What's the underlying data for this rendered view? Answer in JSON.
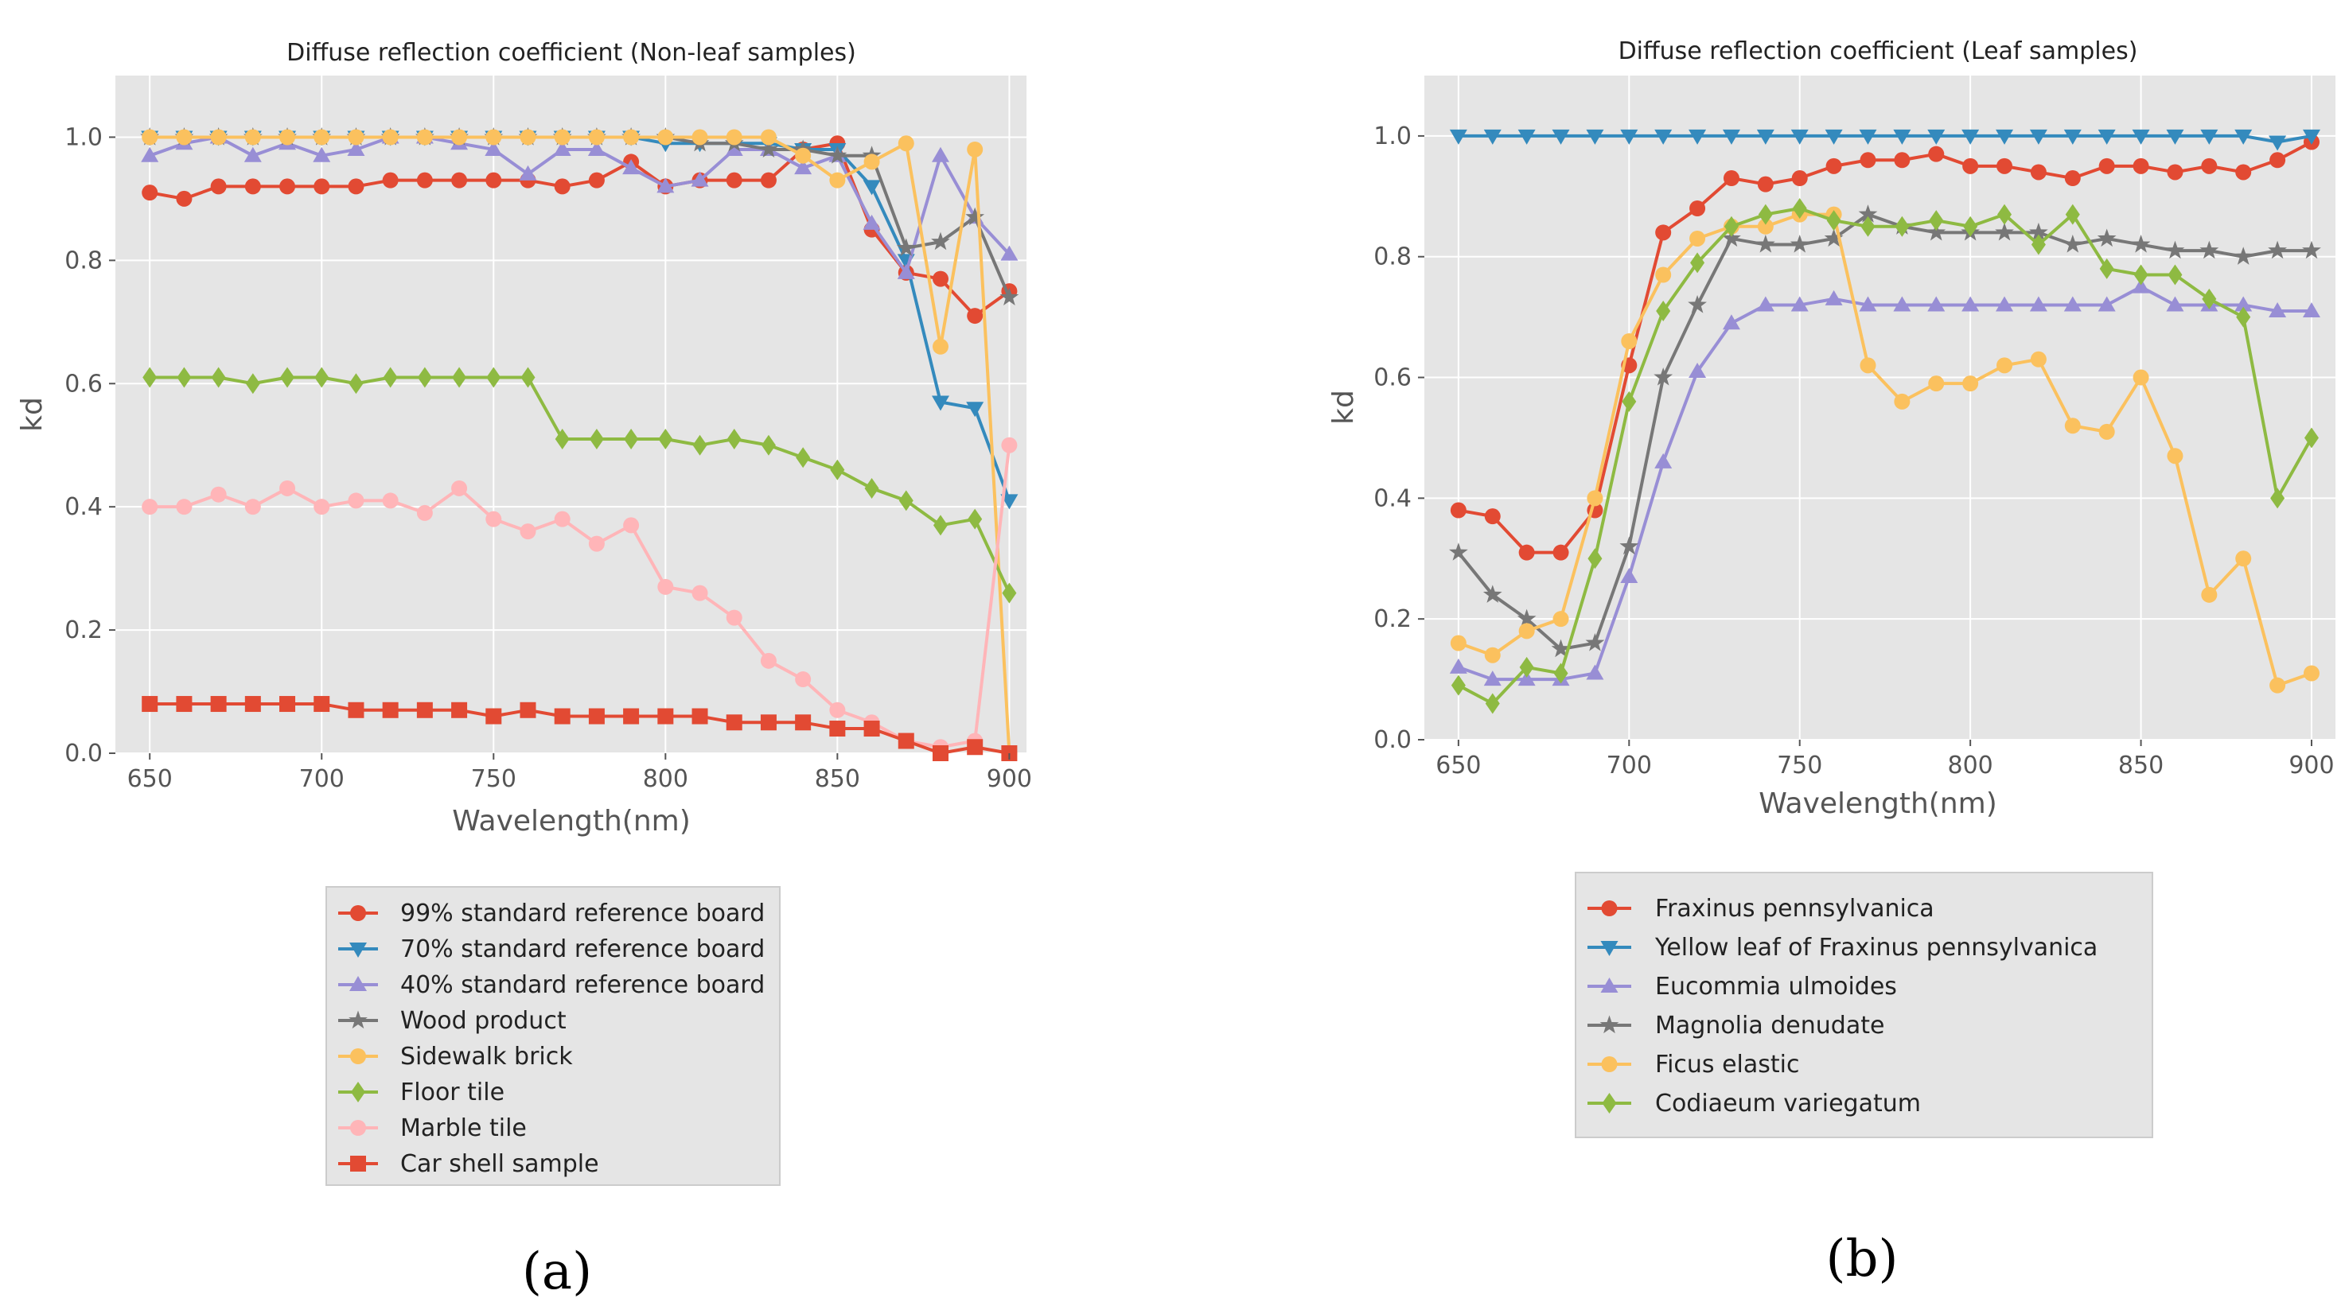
{
  "chart_data": [
    {
      "id": "a",
      "type": "line",
      "panel_label": "(a)",
      "title": "Diffuse reflection coefficient (Non-leaf samples)",
      "xlabel": "Wavelength(nm)",
      "ylabel": "kd",
      "xlim": [
        640,
        905
      ],
      "ylim": [
        0,
        1.1
      ],
      "xticks": [
        650,
        700,
        750,
        800,
        850,
        900
      ],
      "yticks": [
        0.0,
        0.2,
        0.4,
        0.6,
        0.8,
        1.0
      ],
      "xtick_labels": [
        "650",
        "700",
        "750",
        "800",
        "850",
        "900"
      ],
      "ytick_labels": [
        "0.0",
        "0.2",
        "0.4",
        "0.6",
        "0.8",
        "1.0"
      ],
      "grid": true,
      "legend_position": "below",
      "x": [
        650,
        660,
        670,
        680,
        690,
        700,
        710,
        720,
        730,
        740,
        750,
        760,
        770,
        780,
        790,
        800,
        810,
        820,
        830,
        840,
        850,
        860,
        870,
        880,
        890,
        900
      ],
      "series": [
        {
          "name": "99% standard reference board",
          "color": "#E24A33",
          "marker": "circle",
          "values": [
            0.91,
            0.9,
            0.92,
            0.92,
            0.92,
            0.92,
            0.92,
            0.93,
            0.93,
            0.93,
            0.93,
            0.93,
            0.92,
            0.93,
            0.96,
            0.92,
            0.93,
            0.93,
            0.93,
            0.98,
            0.99,
            0.85,
            0.78,
            0.77,
            0.71,
            0.75
          ]
        },
        {
          "name": "70% standard reference board",
          "color": "#348ABD",
          "marker": "triangle-down",
          "values": [
            1.0,
            1.0,
            1.0,
            1.0,
            1.0,
            1.0,
            1.0,
            1.0,
            1.0,
            1.0,
            1.0,
            1.0,
            1.0,
            1.0,
            1.0,
            0.99,
            0.99,
            0.99,
            0.99,
            0.98,
            0.98,
            0.92,
            0.8,
            0.57,
            0.56,
            0.41
          ]
        },
        {
          "name": "40% standard reference board",
          "color": "#988ED5",
          "marker": "triangle-up",
          "values": [
            0.97,
            0.99,
            1.0,
            0.97,
            0.99,
            0.97,
            0.98,
            1.0,
            1.0,
            0.99,
            0.98,
            0.94,
            0.98,
            0.98,
            0.95,
            0.92,
            0.93,
            0.98,
            0.98,
            0.95,
            0.97,
            0.86,
            0.78,
            0.97,
            0.87,
            0.81
          ]
        },
        {
          "name": "Wood product",
          "color": "#777777",
          "marker": "star",
          "values": [
            1.0,
            1.0,
            1.0,
            1.0,
            1.0,
            1.0,
            1.0,
            1.0,
            1.0,
            1.0,
            1.0,
            1.0,
            1.0,
            1.0,
            1.0,
            1.0,
            0.99,
            0.99,
            0.98,
            0.98,
            0.97,
            0.97,
            0.82,
            0.83,
            0.87,
            0.74
          ]
        },
        {
          "name": "Sidewalk brick",
          "color": "#FBC15E",
          "marker": "circle",
          "values": [
            1.0,
            1.0,
            1.0,
            1.0,
            1.0,
            1.0,
            1.0,
            1.0,
            1.0,
            1.0,
            1.0,
            1.0,
            1.0,
            1.0,
            1.0,
            1.0,
            1.0,
            1.0,
            1.0,
            0.97,
            0.93,
            0.96,
            0.99,
            0.66,
            0.98,
            0.0
          ]
        },
        {
          "name": "Floor tile",
          "color": "#8EBA42",
          "marker": "diamond",
          "values": [
            0.61,
            0.61,
            0.61,
            0.6,
            0.61,
            0.61,
            0.6,
            0.61,
            0.61,
            0.61,
            0.61,
            0.61,
            0.51,
            0.51,
            0.51,
            0.51,
            0.5,
            0.51,
            0.5,
            0.48,
            0.46,
            0.43,
            0.41,
            0.37,
            0.38,
            0.26
          ]
        },
        {
          "name": "Marble tile",
          "color": "#FFB5B8",
          "marker": "circle",
          "values": [
            0.4,
            0.4,
            0.42,
            0.4,
            0.43,
            0.4,
            0.41,
            0.41,
            0.39,
            0.43,
            0.38,
            0.36,
            0.38,
            0.34,
            0.37,
            0.27,
            0.26,
            0.22,
            0.15,
            0.12,
            0.07,
            0.05,
            0.02,
            0.01,
            0.02,
            0.5
          ]
        },
        {
          "name": "Car shell sample",
          "color": "#E24A33",
          "marker": "square",
          "values": [
            0.08,
            0.08,
            0.08,
            0.08,
            0.08,
            0.08,
            0.07,
            0.07,
            0.07,
            0.07,
            0.06,
            0.07,
            0.06,
            0.06,
            0.06,
            0.06,
            0.06,
            0.05,
            0.05,
            0.05,
            0.04,
            0.04,
            0.02,
            0.0,
            0.01,
            0.0
          ]
        }
      ]
    },
    {
      "id": "b",
      "type": "line",
      "panel_label": "(b)",
      "title": "Diffuse reflection coefficient (Leaf samples)",
      "xlabel": "Wavelength(nm)",
      "ylabel": "kd",
      "xlim": [
        640,
        907
      ],
      "ylim": [
        0,
        1.1
      ],
      "xticks": [
        650,
        700,
        750,
        800,
        850,
        900
      ],
      "yticks": [
        0.0,
        0.2,
        0.4,
        0.6,
        0.8,
        1.0
      ],
      "xtick_labels": [
        "650",
        "700",
        "750",
        "800",
        "850",
        "900"
      ],
      "ytick_labels": [
        "0.0",
        "0.2",
        "0.4",
        "0.6",
        "0.8",
        "1.0"
      ],
      "grid": true,
      "legend_position": "below",
      "x": [
        650,
        660,
        670,
        680,
        690,
        700,
        710,
        720,
        730,
        740,
        750,
        760,
        770,
        780,
        790,
        800,
        810,
        820,
        830,
        840,
        850,
        860,
        870,
        880,
        890,
        900
      ],
      "series": [
        {
          "name": "Fraxinus pennsylvanica",
          "color": "#E24A33",
          "marker": "circle",
          "values": [
            0.38,
            0.37,
            0.31,
            0.31,
            0.38,
            0.62,
            0.84,
            0.88,
            0.93,
            0.92,
            0.93,
            0.95,
            0.96,
            0.96,
            0.97,
            0.95,
            0.95,
            0.94,
            0.93,
            0.95,
            0.95,
            0.94,
            0.95,
            0.94,
            0.96,
            0.99
          ]
        },
        {
          "name": "Yellow leaf of Fraxinus pennsylvanica",
          "color": "#348ABD",
          "marker": "triangle-down",
          "values": [
            1.0,
            1.0,
            1.0,
            1.0,
            1.0,
            1.0,
            1.0,
            1.0,
            1.0,
            1.0,
            1.0,
            1.0,
            1.0,
            1.0,
            1.0,
            1.0,
            1.0,
            1.0,
            1.0,
            1.0,
            1.0,
            1.0,
            1.0,
            1.0,
            0.99,
            1.0
          ]
        },
        {
          "name": "Eucommia ulmoides",
          "color": "#988ED5",
          "marker": "triangle-up",
          "values": [
            0.12,
            0.1,
            0.1,
            0.1,
            0.11,
            0.27,
            0.46,
            0.61,
            0.69,
            0.72,
            0.72,
            0.73,
            0.72,
            0.72,
            0.72,
            0.72,
            0.72,
            0.72,
            0.72,
            0.72,
            0.75,
            0.72,
            0.72,
            0.72,
            0.71,
            0.71
          ]
        },
        {
          "name": "Magnolia denudate",
          "color": "#777777",
          "marker": "star",
          "values": [
            0.31,
            0.24,
            0.2,
            0.15,
            0.16,
            0.32,
            0.6,
            0.72,
            0.83,
            0.82,
            0.82,
            0.83,
            0.87,
            0.85,
            0.84,
            0.84,
            0.84,
            0.84,
            0.82,
            0.83,
            0.82,
            0.81,
            0.81,
            0.8,
            0.81,
            0.81
          ]
        },
        {
          "name": "Ficus elastic",
          "color": "#FBC15E",
          "marker": "circle",
          "values": [
            0.16,
            0.14,
            0.18,
            0.2,
            0.4,
            0.66,
            0.77,
            0.83,
            0.85,
            0.85,
            0.87,
            0.87,
            0.62,
            0.56,
            0.59,
            0.59,
            0.62,
            0.63,
            0.52,
            0.51,
            0.6,
            0.47,
            0.24,
            0.3,
            0.09,
            0.11
          ]
        },
        {
          "name": "Codiaeum variegatum",
          "color": "#8EBA42",
          "marker": "diamond",
          "values": [
            0.09,
            0.06,
            0.12,
            0.11,
            0.3,
            0.56,
            0.71,
            0.79,
            0.85,
            0.87,
            0.88,
            0.86,
            0.85,
            0.85,
            0.86,
            0.85,
            0.87,
            0.82,
            0.87,
            0.78,
            0.77,
            0.77,
            0.73,
            0.7,
            0.4,
            0.5
          ]
        }
      ]
    }
  ]
}
